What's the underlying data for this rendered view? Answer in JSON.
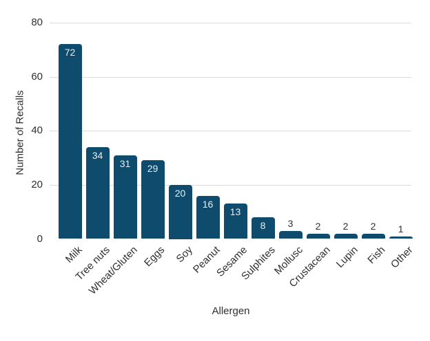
{
  "chart_data": {
    "type": "bar",
    "title": "",
    "xlabel": "Allergen",
    "ylabel": "Number of Recalls",
    "categories": [
      "Milk",
      "Tree nuts",
      "Wheat/Gluten",
      "Eggs",
      "Soy",
      "Peanut",
      "Sesame",
      "Sulphites",
      "Mollusc",
      "Crustacean",
      "Lupin",
      "Fish",
      "Other"
    ],
    "values": [
      72,
      34,
      31,
      29,
      20,
      16,
      13,
      8,
      3,
      2,
      2,
      2,
      1
    ],
    "value_labels": [
      "72",
      "34",
      "31",
      "29",
      "20",
      "16",
      "13",
      "8",
      "3",
      "2",
      "2",
      "2",
      "1"
    ],
    "yticks": [
      0,
      20,
      40,
      60,
      80
    ],
    "ylim": [
      0,
      80
    ],
    "grid": "horizontal-only",
    "legend": "none",
    "colors": {
      "bar_fill": "#0e4b6c",
      "gridline": "#d9d9d9",
      "axis_text": "#2f2f2f",
      "value_label_inside": "#e9eef2",
      "value_label_outside": "#2f2f2f",
      "background": "#ffffff"
    },
    "value_label_inside_threshold": 8
  }
}
